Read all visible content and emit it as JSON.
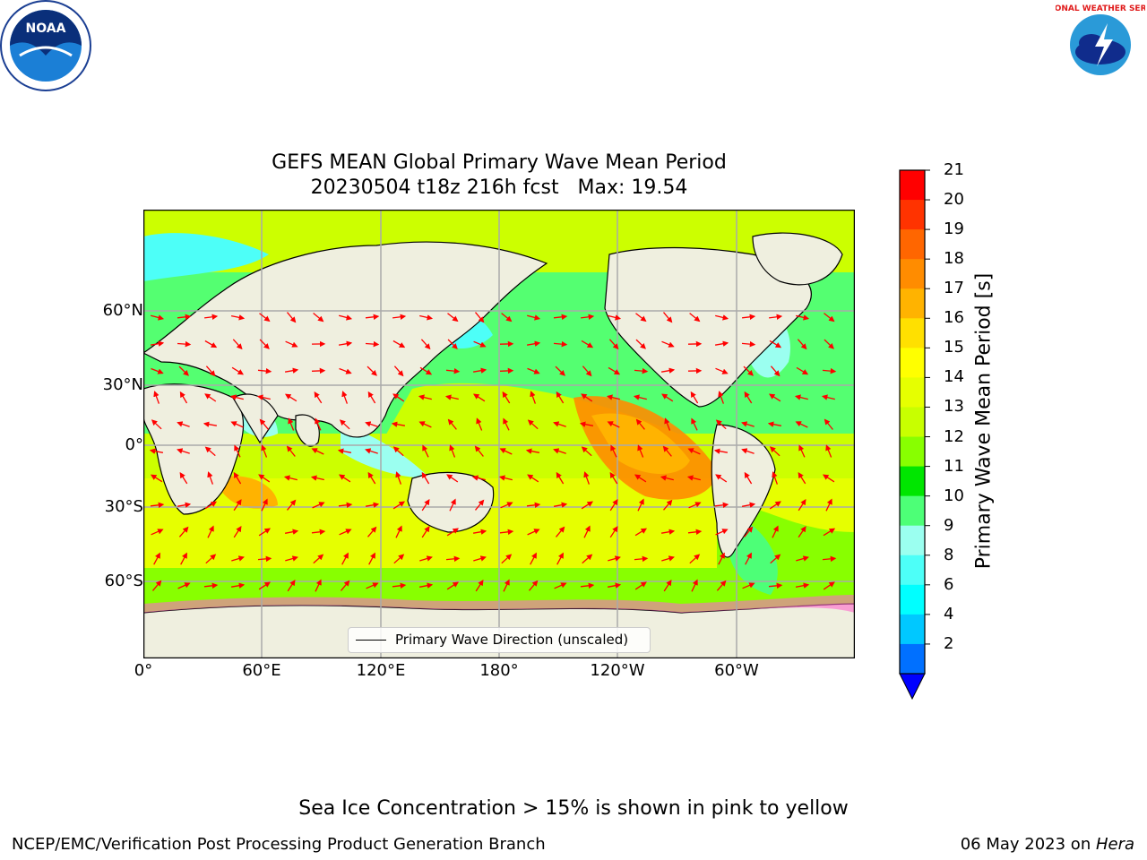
{
  "header": {
    "title_line1": "GEFS MEAN Global Primary Wave Mean Period",
    "title_line2": "20230504 t18z 216h fcst   Max: 19.54"
  },
  "logos": {
    "noaa": "NOAA",
    "nws": "NATIONAL WEATHER SERVICE"
  },
  "map": {
    "lat_ticks": [
      "60°N",
      "30°N",
      "0°",
      "30°S",
      "60°S"
    ],
    "lon_ticks": [
      "0°",
      "60°E",
      "120°E",
      "180°",
      "120°W",
      "60°W"
    ],
    "legend_label": "Primary Wave Direction (unscaled)",
    "arrow_color": "#ff0000",
    "land_color": "#efefdf"
  },
  "colorbar": {
    "label": "Primary Wave Mean Period [s]",
    "ticks": [
      "21",
      "20",
      "19",
      "18",
      "17",
      "16",
      "15",
      "14",
      "13",
      "12",
      "11",
      "10",
      "9",
      "8",
      "6",
      "4",
      "2"
    ],
    "colors": [
      "#ff0000",
      "#ff3300",
      "#ff6600",
      "#ff8c00",
      "#ffb300",
      "#ffe000",
      "#ffff00",
      "#e6ff00",
      "#c8ff00",
      "#88ff00",
      "#00e600",
      "#4dff77",
      "#9bfff0",
      "#4dfff8",
      "#00ffff",
      "#00c8ff",
      "#0070ff"
    ],
    "extend_color": "#0000ff"
  },
  "footer": {
    "ice_note": "Sea Ice Concentration > 15% is shown in pink to yellow",
    "left": "NCEP/EMC/Verification Post Processing Product Generation Branch",
    "date": "06 May 2023",
    "on": " on ",
    "machine": "Hera"
  }
}
